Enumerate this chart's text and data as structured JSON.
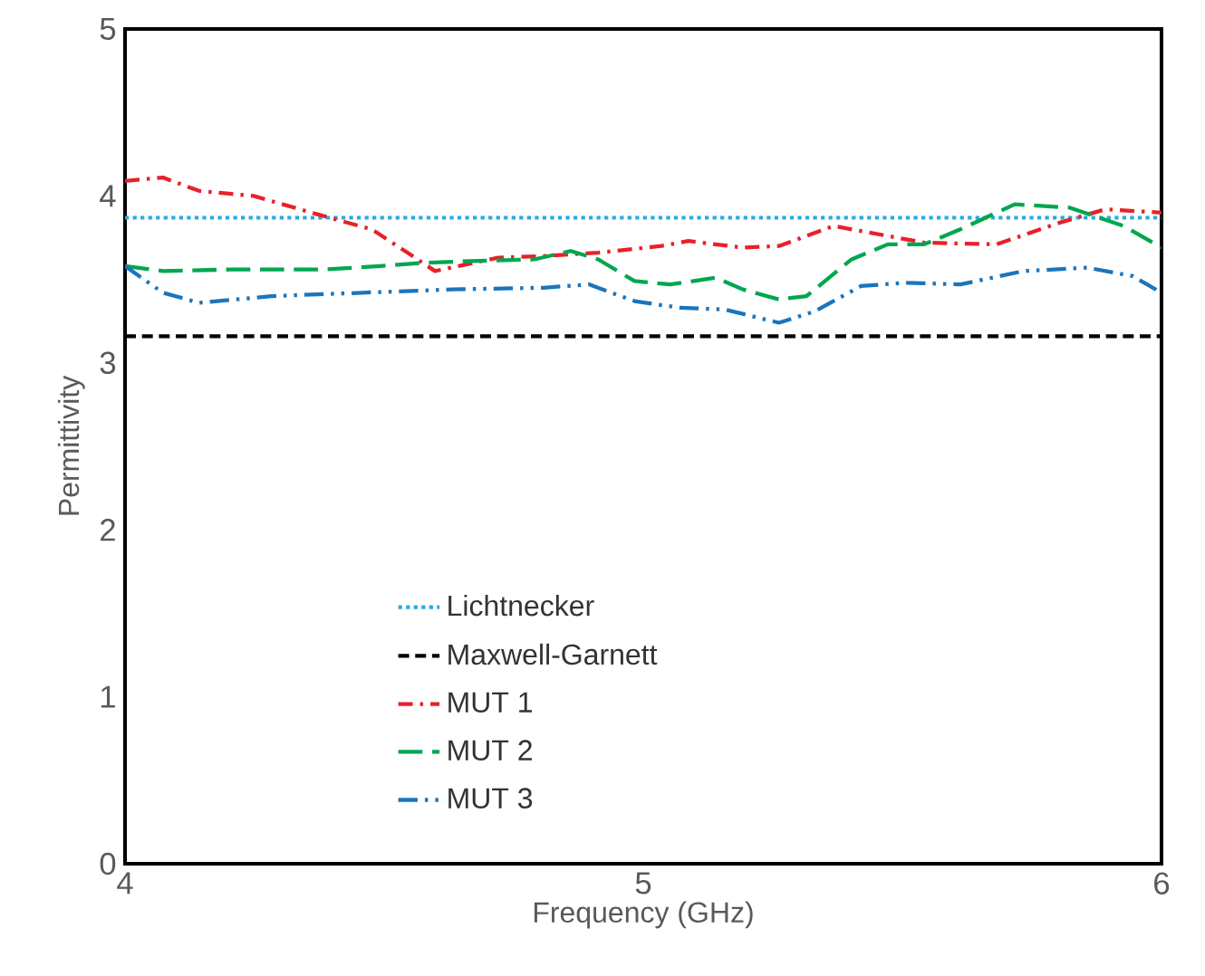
{
  "chart_data": {
    "type": "line",
    "xlabel": "Frequency (GHz)",
    "ylabel": "Permittivity",
    "xlim": [
      4,
      6
    ],
    "ylim": [
      0,
      5
    ],
    "xticks": [
      4,
      5,
      6
    ],
    "yticks": [
      0,
      1,
      2,
      3,
      4,
      5
    ],
    "grid": false,
    "legend": "bottom",
    "marker": "none",
    "series": [
      {
        "name": "Lichtnecker",
        "color": "#29abe2",
        "line_style": "dotted",
        "x": [
          4,
          6
        ],
        "values": [
          3.87,
          3.87
        ]
      },
      {
        "name": "Maxwell-Garnett",
        "color": "#000000",
        "line_style": "dashed",
        "x": [
          4,
          6
        ],
        "values": [
          3.16,
          3.16
        ]
      },
      {
        "name": "MUT 1",
        "color": "#e8202a",
        "line_style": "dashdot",
        "x": [
          4.0,
          4.073,
          4.143,
          4.248,
          4.371,
          4.476,
          4.545,
          4.598,
          4.72,
          4.808,
          4.913,
          5.035,
          5.087,
          5.192,
          5.262,
          5.367,
          5.472,
          5.542,
          5.682,
          5.804,
          5.892,
          6.0
        ],
        "values": [
          4.09,
          4.11,
          4.03,
          4.0,
          3.89,
          3.8,
          3.66,
          3.55,
          3.63,
          3.64,
          3.66,
          3.7,
          3.73,
          3.69,
          3.7,
          3.82,
          3.76,
          3.72,
          3.71,
          3.84,
          3.92,
          3.9
        ]
      },
      {
        "name": "MUT 2",
        "color": "#00a650",
        "line_style": "longdashed",
        "x": [
          4.0,
          4.073,
          4.213,
          4.388,
          4.493,
          4.58,
          4.668,
          4.79,
          4.86,
          4.913,
          4.983,
          5.052,
          5.14,
          5.192,
          5.262,
          5.315,
          5.402,
          5.472,
          5.542,
          5.612,
          5.717,
          5.822,
          5.927,
          6.0
        ],
        "values": [
          3.58,
          3.55,
          3.56,
          3.56,
          3.58,
          3.6,
          3.61,
          3.62,
          3.67,
          3.62,
          3.49,
          3.47,
          3.51,
          3.44,
          3.38,
          3.4,
          3.62,
          3.71,
          3.71,
          3.8,
          3.95,
          3.93,
          3.82,
          3.69
        ]
      },
      {
        "name": "MUT 3",
        "color": "#1b75bc",
        "line_style": "dashdotdot",
        "x": [
          4.0,
          4.073,
          4.143,
          4.283,
          4.458,
          4.633,
          4.808,
          4.895,
          4.983,
          5.07,
          5.157,
          5.262,
          5.332,
          5.42,
          5.507,
          5.612,
          5.734,
          5.857,
          5.944,
          6.0
        ],
        "values": [
          3.58,
          3.42,
          3.36,
          3.4,
          3.42,
          3.44,
          3.45,
          3.47,
          3.37,
          3.33,
          3.32,
          3.24,
          3.31,
          3.46,
          3.48,
          3.47,
          3.55,
          3.57,
          3.52,
          3.42
        ]
      }
    ]
  }
}
